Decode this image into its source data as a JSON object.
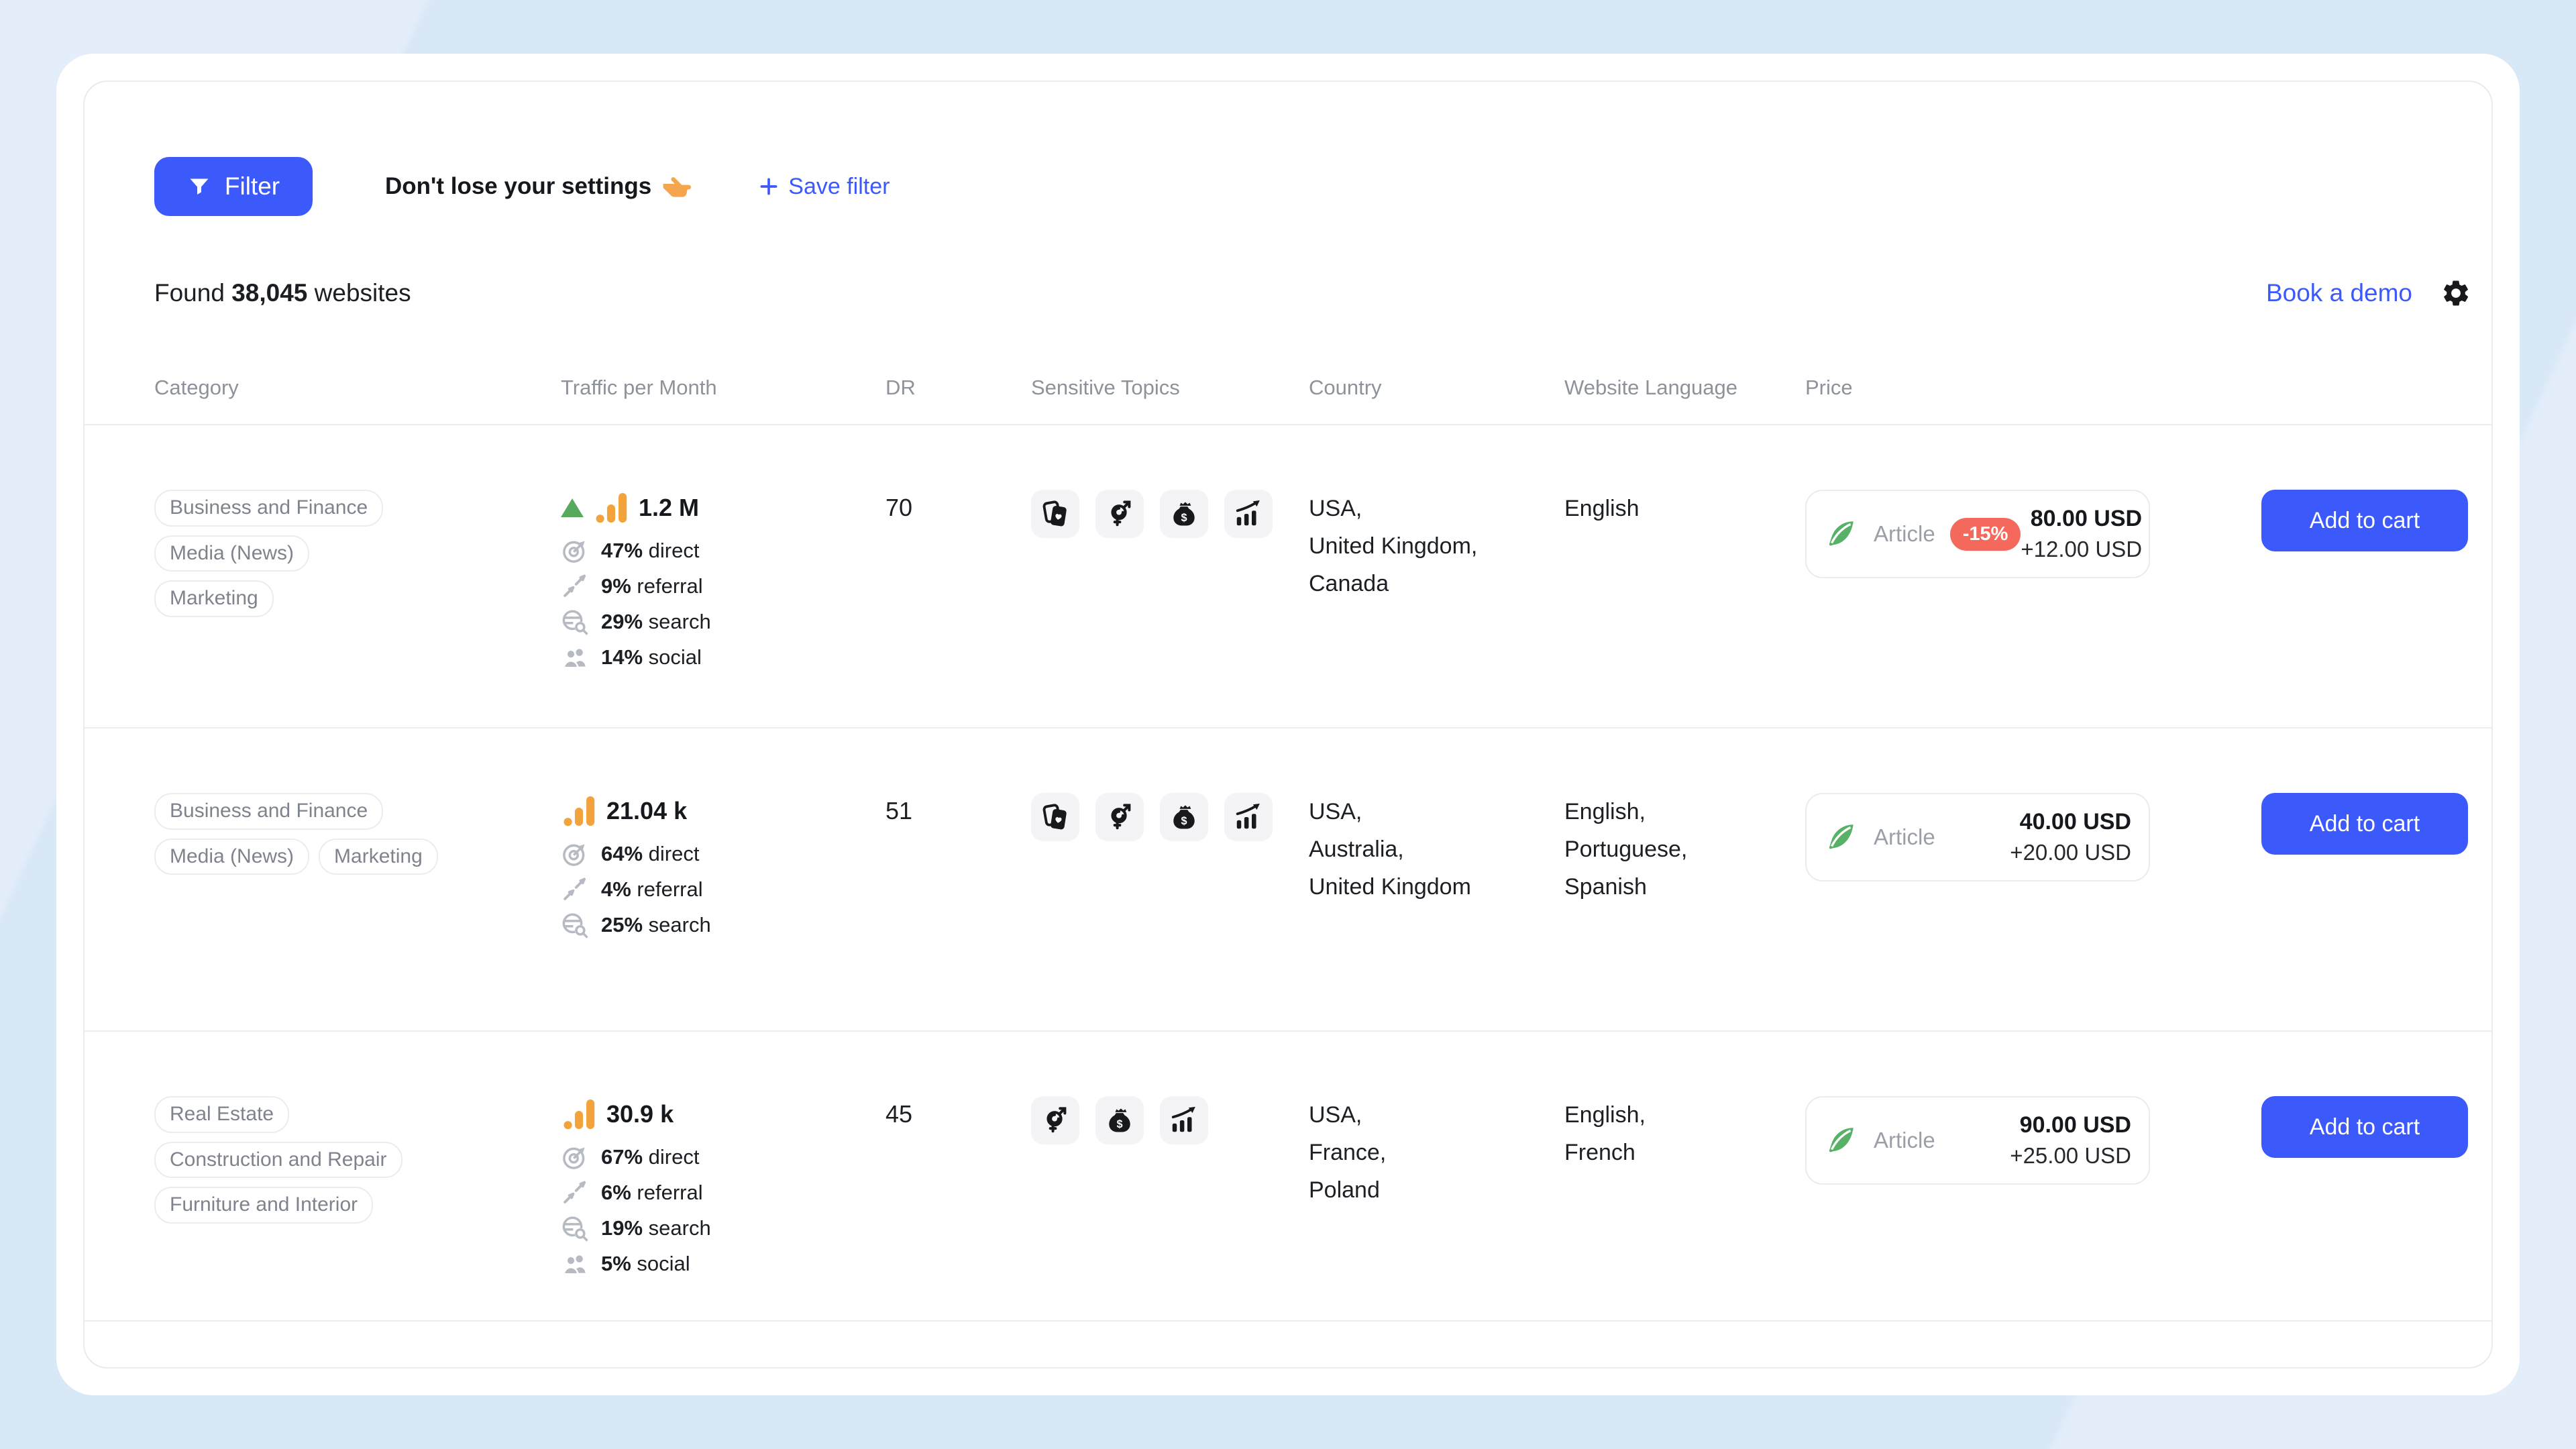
{
  "toolbar": {
    "filter_label": "Filter",
    "hint": "Don't lose your settings",
    "save_filter": "Save filter"
  },
  "results": {
    "prefix": "Found",
    "count": "38,045",
    "suffix": "websites"
  },
  "header_links": {
    "book_demo": "Book a demo"
  },
  "columns": [
    "Category",
    "Traffic per Month",
    "DR",
    "Sensitive Topics",
    "Country",
    "Website Language",
    "Price"
  ],
  "colors": {
    "accent": "#3c59fb",
    "discount_bg": "#f4695c",
    "traffic_orange": "#f2a33c",
    "trend_green": "#57a95d",
    "feather_green": "#57b267"
  },
  "rows": [
    {
      "categories": [
        [
          "Business and Finance"
        ],
        [
          "Media (News)"
        ],
        [
          "Marketing"
        ]
      ],
      "traffic": {
        "value": "1.2 M",
        "trend_up": true,
        "stats": [
          {
            "pct": "47%",
            "label": "direct",
            "icon": "target-icon"
          },
          {
            "pct": "9%",
            "label": "referral",
            "icon": "referral-arrows-icon"
          },
          {
            "pct": "29%",
            "label": "search",
            "icon": "globe-search-icon"
          },
          {
            "pct": "14%",
            "label": "social",
            "icon": "people-icon"
          }
        ]
      },
      "dr": "70",
      "topics": [
        "cards-icon",
        "gender-icon",
        "money-bag-icon",
        "chart-growth-icon"
      ],
      "country": [
        "USA,",
        "United Kingdom,",
        "Canada"
      ],
      "language": [
        "English"
      ],
      "price": {
        "type_label": "Article",
        "discount": "-15%",
        "amount": "80.00 USD",
        "extra": "+12.00 USD"
      },
      "cta": "Add to cart"
    },
    {
      "categories": [
        [
          "Business and Finance"
        ],
        [
          "Media (News)",
          "Marketing"
        ]
      ],
      "traffic": {
        "value": "21.04 k",
        "trend_up": false,
        "stats": [
          {
            "pct": "64%",
            "label": "direct",
            "icon": "target-icon"
          },
          {
            "pct": "4%",
            "label": "referral",
            "icon": "referral-arrows-icon"
          },
          {
            "pct": "25%",
            "label": "search",
            "icon": "globe-search-icon"
          }
        ]
      },
      "dr": "51",
      "topics": [
        "cards-icon",
        "gender-icon",
        "money-bag-icon",
        "chart-growth-icon"
      ],
      "country": [
        "USA,",
        "Australia,",
        "United Kingdom"
      ],
      "language": [
        "English,",
        "Portuguese,",
        "Spanish"
      ],
      "price": {
        "type_label": "Article",
        "discount": null,
        "amount": "40.00 USD",
        "extra": "+20.00 USD"
      },
      "cta": "Add to cart"
    },
    {
      "categories": [
        [
          "Real Estate"
        ],
        [
          "Construction and Repair"
        ],
        [
          "Furniture and Interior"
        ]
      ],
      "traffic": {
        "value": "30.9 k",
        "trend_up": false,
        "stats": [
          {
            "pct": "67%",
            "label": "direct",
            "icon": "target-icon"
          },
          {
            "pct": "6%",
            "label": "referral",
            "icon": "referral-arrows-icon"
          },
          {
            "pct": "19%",
            "label": "search",
            "icon": "globe-search-icon"
          },
          {
            "pct": "5%",
            "label": "social",
            "icon": "people-icon"
          }
        ]
      },
      "dr": "45",
      "topics": [
        "gender-icon",
        "money-bag-icon",
        "chart-growth-icon"
      ],
      "country": [
        "USA,",
        "France,",
        "Poland"
      ],
      "language": [
        "English,",
        "French"
      ],
      "price": {
        "type_label": "Article",
        "discount": null,
        "amount": "90.00 USD",
        "extra": "+25.00 USD"
      },
      "cta": "Add to cart"
    }
  ]
}
